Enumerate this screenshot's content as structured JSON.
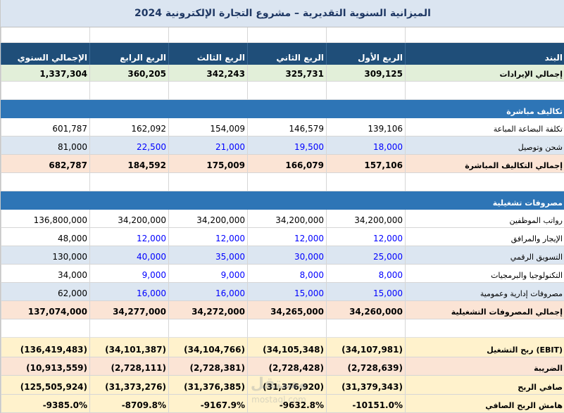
{
  "title": "الميزانية السنوية التقديرية – مشروع التجارة الإلكترونية 2024",
  "headers": [
    "البند",
    "الربع الأول",
    "الربع الثاني",
    "الربع الثالث",
    "الربع الرابع",
    "الإجمالي السنوي"
  ],
  "revenue": {
    "label": "إجمالي الإيرادات",
    "values": [
      "309,125",
      "325,731",
      "342,243",
      "360,205",
      "1,337,304"
    ]
  },
  "direct_section": "تكاليف مباشرة",
  "direct_rows": [
    {
      "label": "تكلفة البضاعة المباعة",
      "values": [
        "139,106",
        "146,579",
        "154,009",
        "162,092",
        "601,787"
      ]
    },
    {
      "label": "شحن وتوصيل",
      "values": [
        "18,000",
        "19,500",
        "21,000",
        "22,500",
        "81,000"
      ]
    }
  ],
  "direct_total": {
    "label": "إجمالي التكاليف المباشرة",
    "values": [
      "157,106",
      "166,079",
      "175,009",
      "184,592",
      "682,787"
    ]
  },
  "opex_section": "مصروفات تشغيلية",
  "opex_rows": [
    {
      "label": "رواتب الموظفين",
      "values": [
        "34,200,000",
        "34,200,000",
        "34,200,000",
        "34,200,000",
        "136,800,000"
      ]
    },
    {
      "label": "الإيجار والمرافق",
      "values": [
        "12,000",
        "12,000",
        "12,000",
        "12,000",
        "48,000"
      ]
    },
    {
      "label": "التسويق الرقمي",
      "values": [
        "25,000",
        "30,000",
        "35,000",
        "40,000",
        "130,000"
      ]
    },
    {
      "label": "التكنولوجيا والبرمجيات",
      "values": [
        "8,000",
        "8,000",
        "9,000",
        "9,000",
        "34,000"
      ]
    },
    {
      "label": "مصروفات إدارية وعمومية",
      "values": [
        "15,000",
        "15,000",
        "16,000",
        "16,000",
        "62,000"
      ]
    }
  ],
  "opex_total": {
    "label": "إجمالي المصروفات التشغيلية",
    "values": [
      "34,260,000",
      "34,265,000",
      "34,272,000",
      "34,277,000",
      "137,074,000"
    ]
  },
  "ebit": {
    "label": "ربح التشغيل (EBIT)",
    "values": [
      "(34,107,981)",
      "(34,105,348)",
      "(34,104,766)",
      "(34,101,387)",
      "(136,419,483)"
    ]
  },
  "tax": {
    "label": "الضريبة",
    "values": [
      "(2,728,639)",
      "(2,728,428)",
      "(2,728,381)",
      "(2,728,111)",
      "(10,913,559)"
    ]
  },
  "net": {
    "label": "صافي الربح",
    "values": [
      "(31,379,343)",
      "(31,376,920)",
      "(31,376,385)",
      "(31,373,276)",
      "(125,505,924)"
    ]
  },
  "margin": {
    "label": "هامش الربح الصافي",
    "values": [
      "-10151.0%",
      "-9632.8%",
      "-9167.9%",
      "-8709.8%",
      "-9385.0%"
    ]
  },
  "watermark": "مستقل mostaql.com",
  "colors": {
    "header": "#1f4e79",
    "section": "#2e75b6",
    "revenue": "#e2efd9",
    "subtotal": "#fbe4d5",
    "ebit": "#fff2cc",
    "input_blue": "#0000ff"
  }
}
